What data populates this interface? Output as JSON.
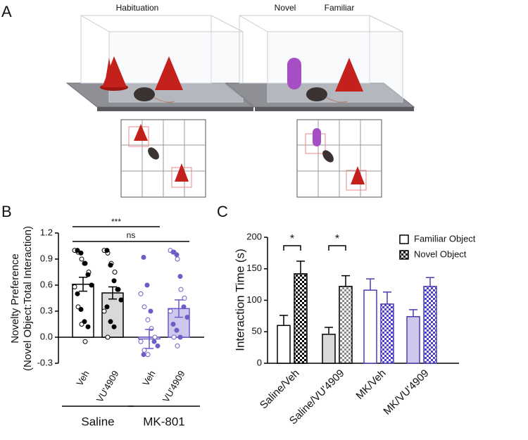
{
  "panel_a": {
    "label": "A",
    "labels": [
      "Habituation",
      "Novel",
      "Familiar"
    ]
  },
  "chart_data": [
    {
      "type": "bar",
      "panel_label": "B",
      "ylabel": [
        "Novelty Preference",
        "(Novel Object:Total Interaction)"
      ],
      "categories": [
        "Veh",
        "VU'4909",
        "Veh",
        "VU'4909"
      ],
      "groups": [
        "Saline",
        "MK-801"
      ],
      "values": [
        0.61,
        0.51,
        -0.02,
        0.33
      ],
      "errors": [
        0.08,
        0.07,
        0.11,
        0.1
      ],
      "points_open": [
        [
          1.0,
          0.98,
          0.9,
          0.85,
          0.75,
          0.58,
          0.35,
          0.15,
          -0.05
        ],
        [
          1.0,
          0.97,
          0.85,
          0.75,
          0.55,
          0.3,
          0.0
        ],
        [
          0.5,
          0.35,
          0.2,
          0.1,
          0.0,
          -0.05,
          -0.15,
          -0.2
        ],
        [
          1.0,
          0.98,
          0.9,
          0.55,
          0.45,
          0.3,
          0.0,
          -0.1
        ]
      ],
      "points_filled": [
        [
          1.0,
          0.97,
          0.85,
          0.72,
          0.6,
          0.5,
          0.32,
          0.18,
          0.12
        ],
        [
          1.0,
          0.83,
          0.65,
          0.55,
          0.43,
          0.35,
          0.18,
          0.12
        ],
        [
          0.92,
          0.6,
          0.3,
          -0.05,
          -0.1,
          -0.2
        ],
        [
          0.98,
          0.95,
          0.7,
          0.35,
          0.23,
          0.15,
          0.08,
          0.0
        ]
      ],
      "colors": [
        "#ffffff",
        "#d9d9d9",
        "#ffffff",
        "#cfc8ec"
      ],
      "edge_colors": [
        "#000000",
        "#000000",
        "#6a5acd",
        "#6a5acd"
      ],
      "point_colors": [
        "#000000",
        "#000000",
        "#6b5fc7",
        "#6b5fc7"
      ],
      "ylim": [
        -0.3,
        1.2
      ],
      "yticks": [
        -0.3,
        {
          "value": 0,
          "label": "0.0"
        },
        0.3,
        0.6,
        0.9,
        1.2
      ],
      "annotations": [
        "***",
        "ns"
      ]
    },
    {
      "type": "bar",
      "panel_label": "C",
      "ylabel": "Interaction Time (s)",
      "categories": [
        "Saline/Veh",
        "Saline/VU'4909",
        "MK/Veh",
        "MK/VU'4909"
      ],
      "series": [
        {
          "name": "Familiar Object",
          "values": [
            60,
            46,
            116,
            74
          ],
          "errors": [
            16,
            11,
            18,
            11
          ],
          "colors": [
            "#ffffff",
            "#d9d9d9",
            "#ffffff",
            "#cfc8ec"
          ],
          "edge_colors": [
            "#000000",
            "#000000",
            "#4b3fb0",
            "#4b3fb0"
          ]
        },
        {
          "name": "Novel Object",
          "values": [
            142,
            122,
            94,
            122
          ],
          "errors": [
            20,
            17,
            19,
            14
          ],
          "hatch": "checker",
          "colors": [
            "#000000",
            "#8c8c8c",
            "#4b3fd0",
            "#4b3fd0"
          ],
          "edge_colors": [
            "#000000",
            "#000000",
            "#4b3fb0",
            "#4b3fb0"
          ]
        }
      ],
      "ylim": [
        0,
        200
      ],
      "yticks": [
        0,
        50,
        100,
        150,
        200
      ],
      "annotations": [
        "*",
        "*"
      ],
      "legend": "upper right"
    }
  ]
}
